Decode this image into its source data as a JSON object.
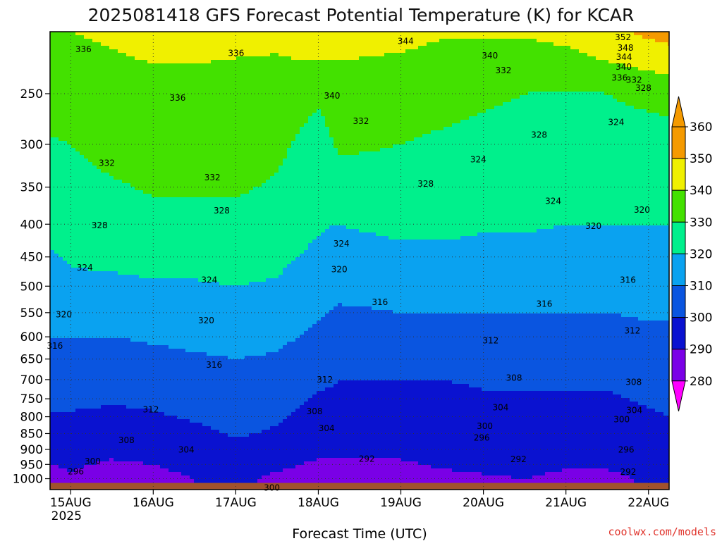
{
  "title": "2025081418 GFS Forecast Potential Temperature (K) for KCAR",
  "credit": "coolwx.com/models",
  "colors": {
    "credit": "#e0342c",
    "ground": "#a0522d",
    "band_colors": [
      "#ff00ff",
      "#7a00e6",
      "#0a12d0",
      "#0a55e0",
      "#0aa2f0",
      "#00f08c",
      "#43e100",
      "#f0f000",
      "#f59a00"
    ]
  },
  "chart_data": {
    "type": "heatmap",
    "title": "2025081418 GFS Forecast Potential Temperature (K) for KCAR",
    "xlabel": "Forecast Time (UTC)",
    "ylabel": "",
    "x_ticks": [
      {
        "label": "15AUG",
        "sub": "2025",
        "t": 0
      },
      {
        "label": "16AUG",
        "sub": "",
        "t": 24
      },
      {
        "label": "17AUG",
        "sub": "",
        "t": 48
      },
      {
        "label": "18AUG",
        "sub": "",
        "t": 72
      },
      {
        "label": "19AUG",
        "sub": "",
        "t": 96
      },
      {
        "label": "20AUG",
        "sub": "",
        "t": 120
      },
      {
        "label": "21AUG",
        "sub": "",
        "t": 144
      },
      {
        "label": "22AUG",
        "sub": "",
        "t": 168
      }
    ],
    "x_range_hours": [
      -6,
      174
    ],
    "y_axis": "pressure (hPa), log scale, decreasing upward",
    "y_ticks": [
      250,
      300,
      350,
      400,
      450,
      500,
      550,
      600,
      650,
      700,
      750,
      800,
      850,
      900,
      950,
      1000
    ],
    "y_range": [
      200,
      1040
    ],
    "grid": "dotted",
    "colorbar": {
      "levels": [
        280,
        290,
        300,
        310,
        320,
        330,
        340,
        350,
        360
      ],
      "extend": "both"
    },
    "contour_interval": 4,
    "times": [
      -6,
      0,
      12,
      24,
      36,
      48,
      60,
      66,
      72,
      78,
      84,
      96,
      108,
      120,
      132,
      144,
      156,
      168,
      174
    ],
    "levels_hpa": [
      1000,
      950,
      900,
      850,
      800,
      750,
      700,
      650,
      600,
      550,
      500,
      450,
      400,
      350,
      300,
      250,
      200
    ],
    "theta": [
      [
        288,
        289,
        286,
        287,
        290,
        294,
        287,
        287,
        286,
        286,
        286,
        286,
        288,
        289,
        290,
        288,
        288,
        291,
        292
      ],
      [
        290,
        291,
        289,
        290,
        293,
        296,
        293,
        290,
        289,
        289,
        289,
        289,
        291,
        292,
        293,
        291,
        291,
        293,
        294
      ],
      [
        293,
        293,
        292,
        293,
        295,
        298,
        296,
        293,
        292,
        292,
        292,
        292,
        293,
        294,
        295,
        294,
        293,
        295,
        296
      ],
      [
        296,
        296,
        295,
        296,
        298,
        301,
        299,
        296,
        294,
        294,
        294,
        294,
        295,
        296,
        297,
        296,
        295,
        297,
        298
      ],
      [
        299,
        299,
        298,
        299,
        301,
        303,
        301,
        299,
        296,
        296,
        296,
        296,
        297,
        298,
        298,
        298,
        297,
        299,
        300
      ],
      [
        302,
        302,
        301,
        302,
        304,
        305,
        303,
        301,
        299,
        298,
        298,
        298,
        298,
        299,
        299,
        299,
        299,
        301,
        302
      ],
      [
        304,
        305,
        304,
        305,
        306,
        307,
        306,
        304,
        302,
        300,
        300,
        300,
        300,
        301,
        301,
        301,
        301,
        303,
        304
      ],
      [
        307,
        307,
        307,
        308,
        309,
        310,
        309,
        307,
        305,
        303,
        303,
        303,
        303,
        304,
        304,
        304,
        304,
        305,
        306
      ],
      [
        310,
        310,
        310,
        311,
        312,
        313,
        312,
        310,
        308,
        306,
        306,
        306,
        306,
        307,
        307,
        307,
        307,
        308,
        308
      ],
      [
        313,
        313,
        314,
        315,
        315,
        316,
        315,
        313,
        311,
        309,
        309,
        310,
        310,
        310,
        310,
        310,
        310,
        311,
        311
      ],
      [
        316,
        318,
        318,
        319,
        319,
        320,
        319,
        317,
        314,
        312,
        313,
        314,
        314,
        313,
        313,
        313,
        313,
        314,
        314
      ],
      [
        319,
        321,
        322,
        323,
        323,
        324,
        322,
        320,
        318,
        315,
        316,
        318,
        318,
        317,
        317,
        316,
        316,
        317,
        317
      ],
      [
        322,
        324,
        326,
        327,
        327,
        327,
        326,
        323,
        321,
        320,
        321,
        322,
        322,
        321,
        321,
        320,
        320,
        320,
        320
      ],
      [
        325,
        327,
        329,
        331,
        331,
        331,
        329,
        326,
        324,
        326,
        326,
        326,
        326,
        325,
        324,
        323,
        323,
        323,
        323
      ],
      [
        329,
        330,
        333,
        334,
        334,
        334,
        332,
        329,
        327,
        331,
        331,
        330,
        329,
        328,
        327,
        326,
        326,
        326,
        326
      ],
      [
        334,
        335,
        337,
        338,
        338,
        337,
        336,
        333,
        331,
        334,
        334,
        333,
        332,
        331,
        330,
        329,
        330,
        332,
        333
      ],
      [
        339,
        340,
        341,
        342,
        342,
        342,
        342,
        345,
        346,
        345,
        344,
        343,
        341,
        341,
        341,
        343,
        348,
        352,
        354
      ]
    ],
    "contour_labels": [
      {
        "value": "336",
        "t": 3.7,
        "p": 213
      },
      {
        "value": "336",
        "t": 48.1,
        "p": 216
      },
      {
        "value": "344",
        "t": 97.4,
        "p": 207
      },
      {
        "value": "340",
        "t": 121.9,
        "p": 218
      },
      {
        "value": "332",
        "t": 125.8,
        "p": 230
      },
      {
        "value": "352",
        "t": 160.6,
        "p": 204
      },
      {
        "value": "348",
        "t": 161.3,
        "p": 212
      },
      {
        "value": "344",
        "t": 160.9,
        "p": 219
      },
      {
        "value": "340",
        "t": 160.8,
        "p": 227
      },
      {
        "value": "336",
        "t": 159.6,
        "p": 236
      },
      {
        "value": "332",
        "t": 163.8,
        "p": 238
      },
      {
        "value": "328",
        "t": 166.5,
        "p": 245
      },
      {
        "value": "336",
        "t": 31.1,
        "p": 254
      },
      {
        "value": "340",
        "t": 76.0,
        "p": 252
      },
      {
        "value": "332",
        "t": 84.4,
        "p": 276
      },
      {
        "value": "328",
        "t": 136.2,
        "p": 290
      },
      {
        "value": "324",
        "t": 158.6,
        "p": 277
      },
      {
        "value": "324",
        "t": 118.5,
        "p": 317
      },
      {
        "value": "332",
        "t": 10.5,
        "p": 321
      },
      {
        "value": "332",
        "t": 41.2,
        "p": 338
      },
      {
        "value": "328",
        "t": 103.2,
        "p": 346
      },
      {
        "value": "324",
        "t": 140.3,
        "p": 368
      },
      {
        "value": "328",
        "t": 43.9,
        "p": 381
      },
      {
        "value": "328",
        "t": 8.4,
        "p": 402
      },
      {
        "value": "320",
        "t": 152.0,
        "p": 403
      },
      {
        "value": "320",
        "t": 166.1,
        "p": 380
      },
      {
        "value": "324",
        "t": 78.7,
        "p": 429
      },
      {
        "value": "324",
        "t": 4.1,
        "p": 468
      },
      {
        "value": "324",
        "t": 40.3,
        "p": 489
      },
      {
        "value": "320",
        "t": 78.1,
        "p": 471
      },
      {
        "value": "316",
        "t": 162.0,
        "p": 489
      },
      {
        "value": "316",
        "t": 89.9,
        "p": 530
      },
      {
        "value": "316",
        "t": 137.7,
        "p": 533
      },
      {
        "value": "320",
        "t": -2.0,
        "p": 554
      },
      {
        "value": "320",
        "t": 39.4,
        "p": 566
      },
      {
        "value": "312",
        "t": 163.3,
        "p": 587
      },
      {
        "value": "312",
        "t": 122.1,
        "p": 608
      },
      {
        "value": "316",
        "t": -4.6,
        "p": 620
      },
      {
        "value": "316",
        "t": 41.7,
        "p": 664
      },
      {
        "value": "312",
        "t": 73.9,
        "p": 700
      },
      {
        "value": "308",
        "t": 128.9,
        "p": 696
      },
      {
        "value": "308",
        "t": 163.7,
        "p": 706
      },
      {
        "value": "312",
        "t": 23.3,
        "p": 780
      },
      {
        "value": "308",
        "t": 70.9,
        "p": 785
      },
      {
        "value": "304",
        "t": 125.0,
        "p": 774
      },
      {
        "value": "304",
        "t": 163.9,
        "p": 782
      },
      {
        "value": "304",
        "t": 74.4,
        "p": 834
      },
      {
        "value": "300",
        "t": 120.4,
        "p": 828
      },
      {
        "value": "300",
        "t": 160.2,
        "p": 808
      },
      {
        "value": "308",
        "t": 16.2,
        "p": 871
      },
      {
        "value": "296",
        "t": 119.5,
        "p": 863
      },
      {
        "value": "304",
        "t": 33.6,
        "p": 901
      },
      {
        "value": "296",
        "t": 161.5,
        "p": 901
      },
      {
        "value": "300",
        "t": 6.4,
        "p": 940
      },
      {
        "value": "292",
        "t": 86.1,
        "p": 931
      },
      {
        "value": "292",
        "t": 130.2,
        "p": 932
      },
      {
        "value": "296",
        "t": 1.5,
        "p": 975
      },
      {
        "value": "292",
        "t": 162.1,
        "p": 976
      },
      {
        "value": "300",
        "t": 58.5,
        "p": 1033
      }
    ]
  }
}
